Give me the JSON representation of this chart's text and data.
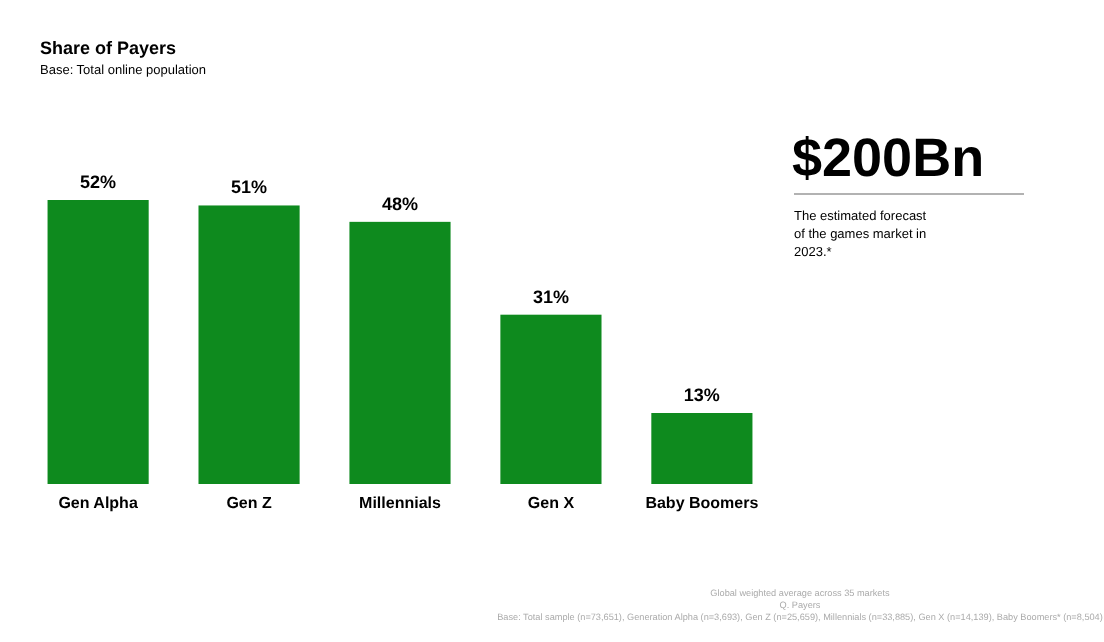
{
  "chart_data": {
    "type": "bar",
    "title": "Share of Payers",
    "subtitle": "Base: Total online population",
    "categories": [
      "Gen Alpha",
      "Gen Z",
      "Millennials",
      "Gen X",
      "Baby Boomers"
    ],
    "values": [
      52,
      51,
      48,
      31,
      13
    ],
    "color": "#0e8a1e",
    "value_labels": [
      "52%",
      "51%",
      "48%",
      "31%",
      "13%"
    ],
    "annotations": [
      "$200Bn",
      "The estimated forecast of the games market in 2023.*",
      "Global weighted average across 35 markets",
      "Q. Payers",
      "Base: Total sample (n=73,651), Generation Alpha (n=3,693), Gen Z (n=25,659), Millennials (n=33,885), Gen X (n=14,139), Baby Boomers* (n=8,504)"
    ]
  }
}
